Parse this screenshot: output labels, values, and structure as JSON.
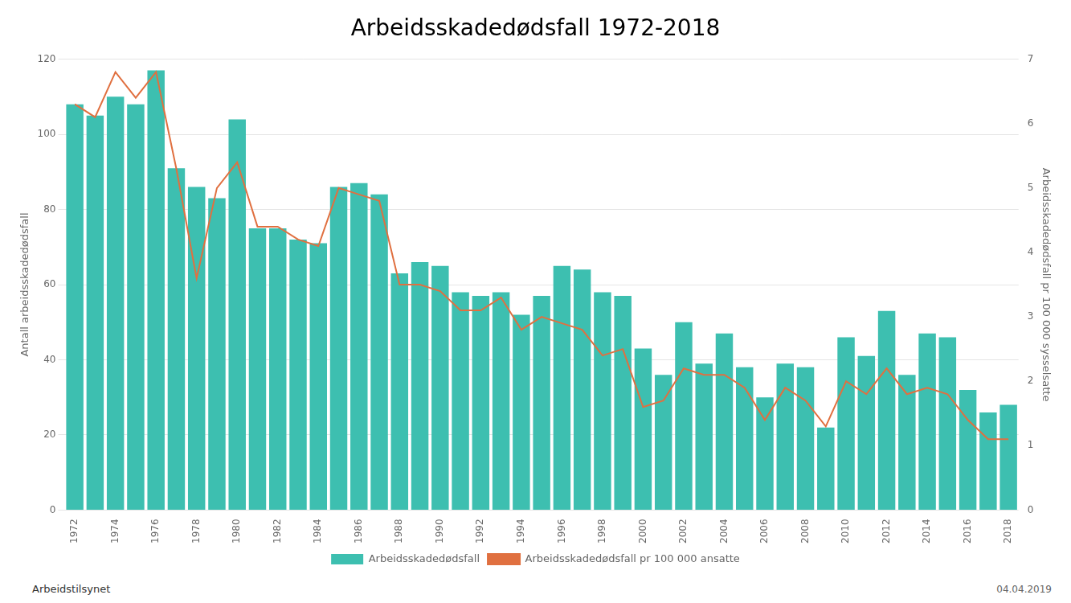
{
  "chart_data": {
    "type": "bar",
    "title": "Arbeidsskadedødsfall 1972-2018",
    "categories": [
      "1972",
      null,
      "1974",
      null,
      "1976",
      null,
      "1978",
      null,
      "1980",
      null,
      "1982",
      null,
      "1984",
      null,
      "1986",
      null,
      "1988",
      null,
      "1990",
      null,
      "1992",
      null,
      "1994",
      null,
      "1996",
      null,
      "1998",
      null,
      "2000",
      null,
      "2002",
      null,
      "2004",
      null,
      "2006",
      null,
      "2008",
      null,
      "2010",
      null,
      "2012",
      null,
      "2014",
      null,
      "2016",
      null,
      "2018"
    ],
    "series": [
      {
        "name": "Arbeidsskadedødsfall",
        "color": "#3dbfb0",
        "type": "bar",
        "values": [
          108,
          105,
          110,
          108,
          117,
          91,
          86,
          83,
          104,
          75,
          75,
          72,
          71,
          86,
          87,
          84,
          63,
          66,
          65,
          58,
          57,
          58,
          52,
          57,
          65,
          64,
          58,
          57,
          43,
          36,
          50,
          39,
          47,
          38,
          30,
          39,
          38,
          22,
          46,
          41,
          53,
          36,
          47,
          46,
          32,
          26,
          28
        ]
      },
      {
        "name": "Arbeidsskadedødsfall pr 100 000 ansatte",
        "color": "#e07040",
        "type": "line",
        "axis": "y2",
        "values": [
          6.3,
          6.1,
          6.8,
          6.4,
          6.8,
          5.3,
          3.6,
          5.0,
          5.4,
          4.4,
          4.4,
          4.2,
          4.1,
          5.0,
          4.9,
          4.8,
          3.5,
          3.5,
          3.4,
          3.1,
          3.1,
          3.3,
          2.8,
          3.0,
          2.9,
          2.8,
          2.4,
          2.5,
          1.6,
          1.7,
          2.2,
          2.1,
          2.1,
          1.9,
          1.4,
          1.9,
          1.7,
          1.3,
          2.0,
          1.8,
          2.2,
          1.8,
          1.9,
          1.8,
          1.4,
          1.1,
          1.1
        ]
      }
    ],
    "ylabel": "Antall arbeidsskadedødsfall",
    "y2label": "Arbeidsskadedødsfall pr 100 000 sysselsatte",
    "ylim": [
      0,
      120
    ],
    "yticks": [
      0,
      20,
      40,
      60,
      80,
      100,
      120
    ],
    "y2lim": [
      0,
      7
    ],
    "y2ticks": [
      0,
      1,
      2,
      3,
      4,
      5,
      6,
      7
    ],
    "grid": true,
    "legend": "bottom",
    "annotations": [
      "Arbeidstilsynet",
      "04.04.2019"
    ]
  }
}
